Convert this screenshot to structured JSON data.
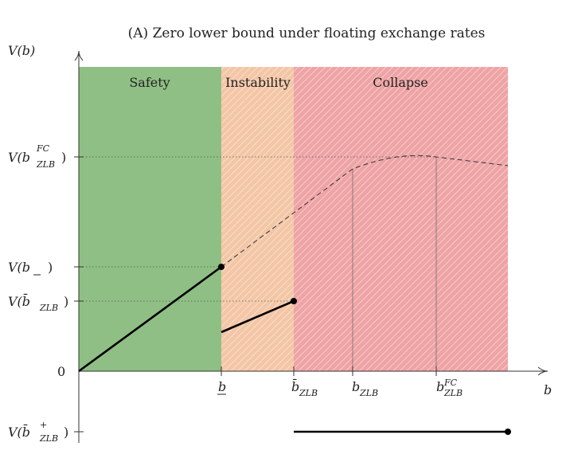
{
  "title": "(A) Zero lower bound under floating exchange rates",
  "axes": {
    "y_label": "V(b)",
    "x_label": "b",
    "origin": "0"
  },
  "regions": [
    {
      "name": "Safety",
      "color": "#8fbf84",
      "hatched": false
    },
    {
      "name": "Instability",
      "color": "#f3c6a6",
      "hatched": true
    },
    {
      "name": "Collapse",
      "color": "#eea3a5",
      "hatched": true
    }
  ],
  "y_ticks": [
    {
      "main": "V(b",
      "sup": "FC",
      "sub": "ZLB",
      "tail": ")"
    },
    {
      "main": "V(b",
      "underline": true,
      "tail": ")"
    },
    {
      "main": "V(b̄",
      "sub": "ZLB",
      "tail": ")"
    },
    {
      "main": "V(b̄",
      "sup": "+",
      "sub": "ZLB",
      "tail": ")"
    }
  ],
  "x_ticks": [
    {
      "main": "b",
      "underline": true
    },
    {
      "main": "b̄",
      "sub": "ZLB"
    },
    {
      "main": "b",
      "sub": "ZLB"
    },
    {
      "main": "b",
      "sup": "FC",
      "sub": "ZLB"
    }
  ],
  "lines": {
    "solid_style": "solid",
    "dashed_style": "dashed",
    "markers": "filled-circle"
  }
}
